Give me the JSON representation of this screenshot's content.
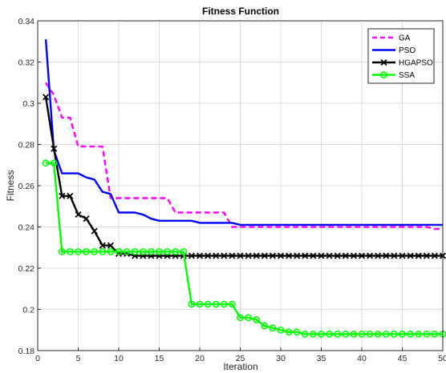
{
  "chart_data": {
    "type": "line",
    "title": "Fitness Function",
    "xlabel": "Iteration",
    "ylabel": "Fitness",
    "xlim": [
      0,
      50
    ],
    "ylim": [
      0.18,
      0.34
    ],
    "xticks": [
      "0",
      "5",
      "10",
      "15",
      "20",
      "25",
      "30",
      "35",
      "40",
      "45",
      "50"
    ],
    "yticks": [
      "0.18",
      "0.2",
      "0.22",
      "0.24",
      "0.26",
      "0.28",
      "0.3",
      "0.32",
      "0.34"
    ],
    "grid": true,
    "legend_position": "top-right",
    "series": [
      {
        "name": "GA",
        "color": "#ff00ff",
        "line_style": "dashed",
        "marker": "none",
        "x": [
          1,
          2,
          3,
          4,
          5,
          6,
          7,
          8,
          9,
          10,
          11,
          12,
          13,
          14,
          15,
          16,
          17,
          18,
          19,
          20,
          21,
          22,
          23,
          24,
          25,
          26,
          27,
          28,
          29,
          30,
          31,
          32,
          33,
          34,
          35,
          36,
          37,
          38,
          39,
          40,
          41,
          42,
          43,
          44,
          45,
          46,
          47,
          48,
          49,
          50
        ],
        "y": [
          0.31,
          0.304,
          0.293,
          0.293,
          0.279,
          0.279,
          0.279,
          0.279,
          0.254,
          0.254,
          0.254,
          0.254,
          0.254,
          0.254,
          0.254,
          0.254,
          0.247,
          0.247,
          0.247,
          0.247,
          0.247,
          0.247,
          0.247,
          0.24,
          0.24,
          0.24,
          0.24,
          0.24,
          0.24,
          0.24,
          0.24,
          0.24,
          0.24,
          0.24,
          0.24,
          0.24,
          0.24,
          0.24,
          0.24,
          0.24,
          0.24,
          0.24,
          0.24,
          0.24,
          0.24,
          0.24,
          0.24,
          0.24,
          0.239,
          0.239
        ]
      },
      {
        "name": "PSO",
        "color": "#0000ff",
        "line_style": "solid",
        "marker": "none",
        "x": [
          1,
          2,
          3,
          4,
          5,
          6,
          7,
          8,
          9,
          10,
          11,
          12,
          13,
          14,
          15,
          16,
          17,
          18,
          19,
          20,
          21,
          22,
          23,
          24,
          25,
          26,
          27,
          28,
          29,
          30,
          31,
          32,
          33,
          34,
          35,
          36,
          37,
          38,
          39,
          40,
          41,
          42,
          43,
          44,
          45,
          46,
          47,
          48,
          49,
          50
        ],
        "y": [
          0.331,
          0.277,
          0.266,
          0.266,
          0.266,
          0.264,
          0.263,
          0.257,
          0.256,
          0.247,
          0.247,
          0.247,
          0.246,
          0.244,
          0.243,
          0.243,
          0.243,
          0.243,
          0.243,
          0.242,
          0.242,
          0.242,
          0.242,
          0.242,
          0.241,
          0.241,
          0.241,
          0.241,
          0.241,
          0.241,
          0.241,
          0.241,
          0.241,
          0.241,
          0.241,
          0.241,
          0.241,
          0.241,
          0.241,
          0.241,
          0.241,
          0.241,
          0.241,
          0.241,
          0.241,
          0.241,
          0.241,
          0.241,
          0.241,
          0.241
        ]
      },
      {
        "name": "HGAPSO",
        "color": "#000000",
        "line_style": "solid",
        "marker": "x",
        "x": [
          1,
          2,
          3,
          4,
          5,
          6,
          7,
          8,
          9,
          10,
          11,
          12,
          13,
          14,
          15,
          16,
          17,
          18,
          19,
          20,
          21,
          22,
          23,
          24,
          25,
          26,
          27,
          28,
          29,
          30,
          31,
          32,
          33,
          34,
          35,
          36,
          37,
          38,
          39,
          40,
          41,
          42,
          43,
          44,
          45,
          46,
          47,
          48,
          49,
          50
        ],
        "y": [
          0.303,
          0.278,
          0.255,
          0.255,
          0.246,
          0.244,
          0.238,
          0.231,
          0.231,
          0.227,
          0.227,
          0.226,
          0.226,
          0.226,
          0.226,
          0.226,
          0.226,
          0.226,
          0.226,
          0.226,
          0.226,
          0.226,
          0.226,
          0.226,
          0.226,
          0.226,
          0.226,
          0.226,
          0.226,
          0.226,
          0.226,
          0.226,
          0.226,
          0.226,
          0.226,
          0.226,
          0.226,
          0.226,
          0.226,
          0.226,
          0.226,
          0.226,
          0.226,
          0.226,
          0.226,
          0.226,
          0.226,
          0.226,
          0.226,
          0.226
        ]
      },
      {
        "name": "SSA",
        "color": "#00ff00",
        "line_style": "solid",
        "marker": "o",
        "x": [
          1,
          2,
          3,
          4,
          5,
          6,
          7,
          8,
          9,
          10,
          11,
          12,
          13,
          14,
          15,
          16,
          17,
          18,
          19,
          20,
          21,
          22,
          23,
          24,
          25,
          26,
          27,
          28,
          29,
          30,
          31,
          32,
          33,
          34,
          35,
          36,
          37,
          38,
          39,
          40,
          41,
          42,
          43,
          44,
          45,
          46,
          47,
          48,
          49,
          50
        ],
        "y": [
          0.271,
          0.271,
          0.228,
          0.228,
          0.228,
          0.228,
          0.228,
          0.228,
          0.228,
          0.228,
          0.228,
          0.228,
          0.228,
          0.228,
          0.228,
          0.228,
          0.228,
          0.228,
          0.2025,
          0.2025,
          0.2025,
          0.2025,
          0.2025,
          0.2025,
          0.196,
          0.196,
          0.195,
          0.192,
          0.191,
          0.19,
          0.189,
          0.189,
          0.188,
          0.188,
          0.188,
          0.188,
          0.188,
          0.188,
          0.188,
          0.188,
          0.188,
          0.188,
          0.188,
          0.188,
          0.188,
          0.188,
          0.188,
          0.188,
          0.188,
          0.188
        ]
      }
    ]
  }
}
